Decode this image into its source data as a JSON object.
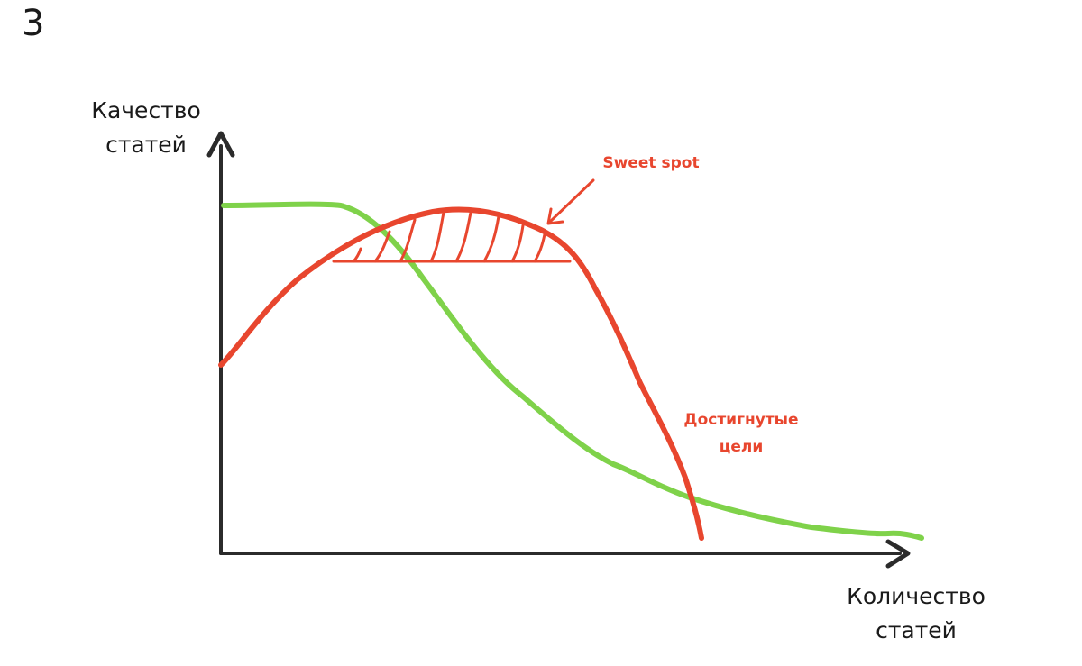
{
  "slide_number": "3",
  "axes": {
    "y_label_line1": "Качество",
    "y_label_line2": "статей",
    "x_label_line1": "Количество",
    "x_label_line2": "статей"
  },
  "annotations": {
    "sweet_spot": "Sweet spot",
    "goals_line1": "Достигнутые",
    "goals_line2": "цели"
  },
  "colors": {
    "axis": "#2b2b2b",
    "quality_curve": "#7fd24a",
    "goals_curve": "#e8462e",
    "text": "#1a1a1a"
  }
}
